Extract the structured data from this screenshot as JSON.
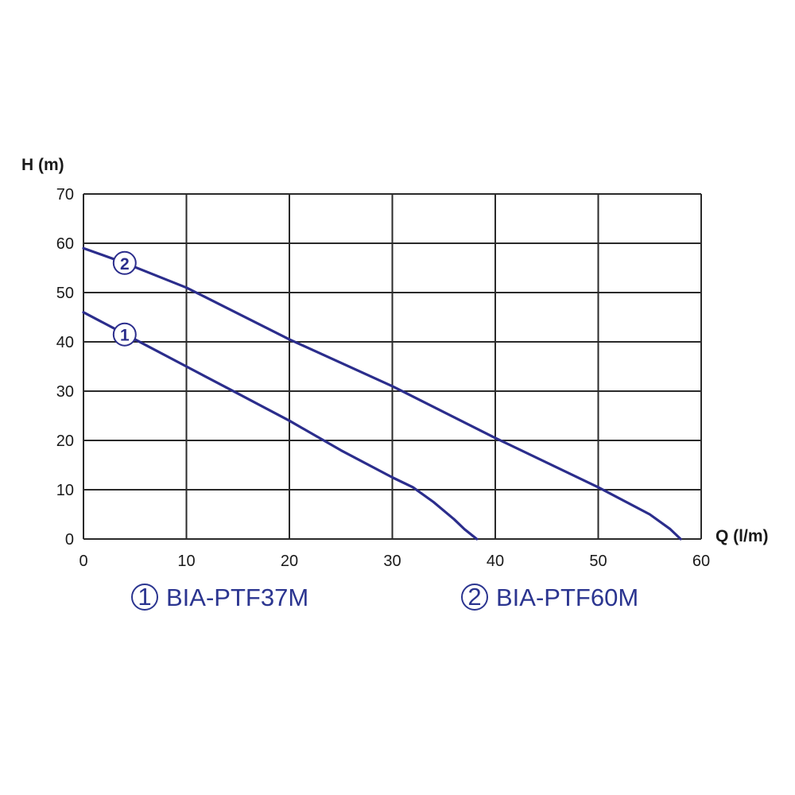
{
  "chart_data": {
    "type": "line",
    "xlabel": "Q (l/m)",
    "ylabel": "H (m)",
    "xlim": [
      0,
      60
    ],
    "ylim": [
      0,
      70
    ],
    "xticks": [
      0,
      10,
      20,
      30,
      40,
      50,
      60
    ],
    "yticks": [
      0,
      10,
      20,
      30,
      40,
      50,
      60,
      70
    ],
    "grid": true,
    "series": [
      {
        "name": "BIA-PTF37M",
        "marker": "1",
        "x": [
          0,
          5,
          10,
          15,
          20,
          25,
          30,
          32,
          34,
          36,
          37,
          38.2
        ],
        "y": [
          46,
          40.5,
          35,
          29.5,
          24,
          18,
          12.5,
          10.5,
          7.5,
          4,
          2,
          0
        ],
        "label_at": [
          4,
          41.5
        ]
      },
      {
        "name": "BIA-PTF60M",
        "marker": "2",
        "x": [
          0,
          4,
          10,
          20,
          30,
          40,
          50,
          55,
          57,
          58
        ],
        "y": [
          59,
          56,
          51,
          40.5,
          31,
          20.5,
          10.5,
          5,
          2,
          0
        ],
        "label_at": [
          4,
          56
        ]
      }
    ],
    "legend": {
      "position": "bottom",
      "items": [
        {
          "symbol": "1",
          "label": "BIA-PTF37M"
        },
        {
          "symbol": "2",
          "label": "BIA-PTF60M"
        }
      ]
    },
    "colors": {
      "line": "#2b2d8c",
      "legend_text": "#2b3590",
      "grid": "#2a2a2a"
    }
  }
}
